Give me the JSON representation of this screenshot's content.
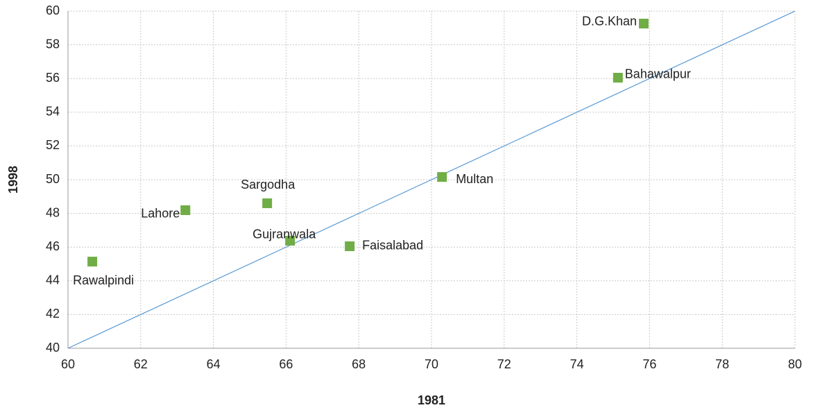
{
  "chart_data": {
    "type": "scatter",
    "x_label": "1981",
    "y_label": "1998",
    "series": [
      {
        "color": "#70ad47",
        "labels": [
          "Rawalpindi",
          "Lahore",
          "Sargodha",
          "Gujranwala",
          "Faisalabad",
          "Multan",
          "Bahawalpur",
          "D.G.Khan"
        ],
        "x": [
          60.67,
          63.23,
          65.48,
          66.11,
          67.75,
          70.29,
          75.13,
          75.84
        ],
        "values": [
          45.14,
          48.19,
          48.6,
          46.38,
          46.05,
          50.16,
          56.05,
          59.26
        ]
      }
    ],
    "reference_line": {
      "color": "#5b9bd5",
      "x": [
        60,
        80
      ],
      "values": [
        40,
        60
      ]
    },
    "xlim": [
      60,
      80
    ],
    "xticks": [
      60,
      62,
      64,
      66,
      68,
      70,
      72,
      74,
      76,
      78,
      80
    ],
    "ylim": [
      40,
      60
    ],
    "yticks": [
      40,
      42,
      44,
      46,
      48,
      50,
      52,
      54,
      56,
      58,
      60
    ],
    "grid": true
  }
}
